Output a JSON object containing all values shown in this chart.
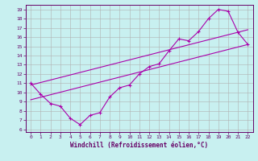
{
  "xlabel": "Windchill (Refroidissement éolien,°C)",
  "bg_color": "#c8f0f0",
  "line_color": "#aa00aa",
  "grid_color": "#b0b0b0",
  "axis_color": "#660066",
  "xlim": [
    -0.5,
    22.5
  ],
  "ylim": [
    5.7,
    19.5
  ],
  "xticks": [
    0,
    1,
    2,
    3,
    4,
    5,
    6,
    7,
    8,
    9,
    10,
    11,
    12,
    13,
    14,
    15,
    16,
    17,
    18,
    19,
    20,
    21,
    22
  ],
  "yticks": [
    6,
    7,
    8,
    9,
    10,
    11,
    12,
    13,
    14,
    15,
    16,
    17,
    18,
    19
  ],
  "line1_x": [
    0,
    1,
    2,
    3,
    4,
    5,
    6,
    7,
    8,
    9,
    10,
    11,
    12,
    13,
    14,
    15,
    16,
    17,
    18,
    19,
    20,
    21,
    22
  ],
  "line1_y": [
    11,
    9.8,
    8.8,
    8.5,
    7.2,
    6.5,
    7.5,
    7.8,
    9.5,
    10.5,
    10.8,
    12.0,
    12.8,
    13.1,
    14.5,
    15.8,
    15.6,
    16.6,
    18.0,
    19.0,
    18.8,
    16.5,
    15.2
  ],
  "line2_x": [
    0,
    22
  ],
  "line2_y": [
    10.8,
    16.8
  ],
  "line3_x": [
    0,
    22
  ],
  "line3_y": [
    9.2,
    15.2
  ]
}
